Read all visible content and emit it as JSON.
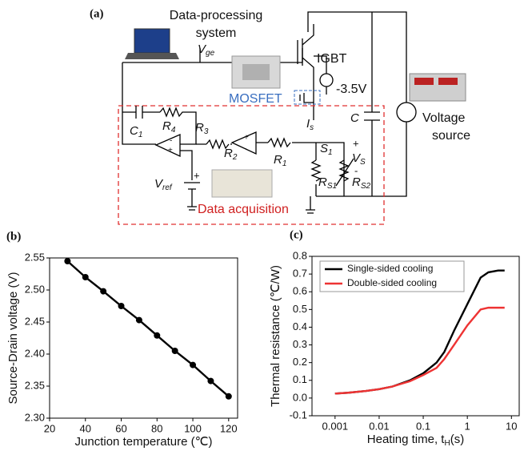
{
  "diagram": {
    "panel_label": "(a)",
    "computer_label": [
      "Data-processing",
      "system"
    ],
    "vge": {
      "main": "V",
      "sub": "ge"
    },
    "igbt": "IGBT",
    "gate_voltage": "-3.5V",
    "mosfet": "MOSFET",
    "is": {
      "main": "I",
      "sub": "s"
    },
    "c": "C",
    "voltage_source": [
      "Voltage",
      "source"
    ],
    "c1": {
      "main": "C",
      "sub": "1"
    },
    "r4": {
      "main": "R",
      "sub": "4"
    },
    "r3": {
      "main": "R",
      "sub": "3"
    },
    "r2": {
      "main": "R",
      "sub": "2"
    },
    "r1": {
      "main": "R",
      "sub": "1"
    },
    "s1": {
      "main": "S",
      "sub": "1"
    },
    "vs": {
      "main": "V",
      "sub": "S"
    },
    "rs1": {
      "main": "R",
      "sub": "S1"
    },
    "rs2": {
      "main": "R",
      "sub": "S2"
    },
    "vref": {
      "main": "V",
      "sub": "ref"
    },
    "data_acquisition": "Data acquisition",
    "plus": "+",
    "minus": "-"
  },
  "chart_data": [
    {
      "type": "line",
      "panel_label": "(b)",
      "xlabel": "Junction temperature (℃)",
      "ylabel": "Source-Drain voltage (V)",
      "x": [
        30,
        40,
        50,
        60,
        70,
        80,
        90,
        100,
        110,
        120
      ],
      "values": [
        2.545,
        2.52,
        2.498,
        2.475,
        2.453,
        2.429,
        2.405,
        2.383,
        2.358,
        2.334
      ],
      "color": "#000000",
      "markers": true,
      "xlim": [
        20,
        125
      ],
      "xticks": [
        20,
        40,
        60,
        80,
        100,
        120
      ],
      "ylim": [
        2.3,
        2.55
      ],
      "yticks": [
        {
          "value": 2.3,
          "label": "2.30"
        },
        2.35,
        {
          "value": 2.4,
          "label": "2.40"
        },
        2.45,
        {
          "value": 2.5,
          "label": "2.50"
        },
        2.55
      ]
    },
    {
      "type": "line",
      "panel_label": "(c)",
      "xlabel": {
        "main": "Heating time, t",
        "sub": "H",
        "after": "(s)"
      },
      "ylabel": "Thermal resistance (℃/W)",
      "xscale": "log",
      "legend": "upper left",
      "x": [
        0.001,
        0.002,
        0.005,
        0.01,
        0.02,
        0.05,
        0.1,
        0.2,
        0.3,
        0.5,
        1,
        2,
        3,
        5,
        7
      ],
      "series": [
        {
          "name": "Single-sided cooling",
          "color": "#000000",
          "values": [
            0.025,
            0.03,
            0.04,
            0.05,
            0.065,
            0.1,
            0.14,
            0.2,
            0.26,
            0.38,
            0.53,
            0.68,
            0.71,
            0.72,
            0.72
          ]
        },
        {
          "name": "Double-sided cooling",
          "color": "#ee3333",
          "values": [
            0.025,
            0.03,
            0.04,
            0.05,
            0.065,
            0.095,
            0.13,
            0.17,
            0.22,
            0.3,
            0.41,
            0.5,
            0.51,
            0.51,
            0.51
          ]
        }
      ],
      "xlim": [
        0.0003,
        15
      ],
      "xticks": [
        0.001,
        0.01,
        0.1,
        1,
        10
      ],
      "ylim": [
        -0.1,
        0.8
      ],
      "yticks": [
        -0.1,
        {
          "value": 0,
          "label": "0.0"
        },
        0.1,
        0.2,
        0.3,
        0.4,
        0.5,
        0.6,
        0.7,
        0.8
      ]
    }
  ]
}
